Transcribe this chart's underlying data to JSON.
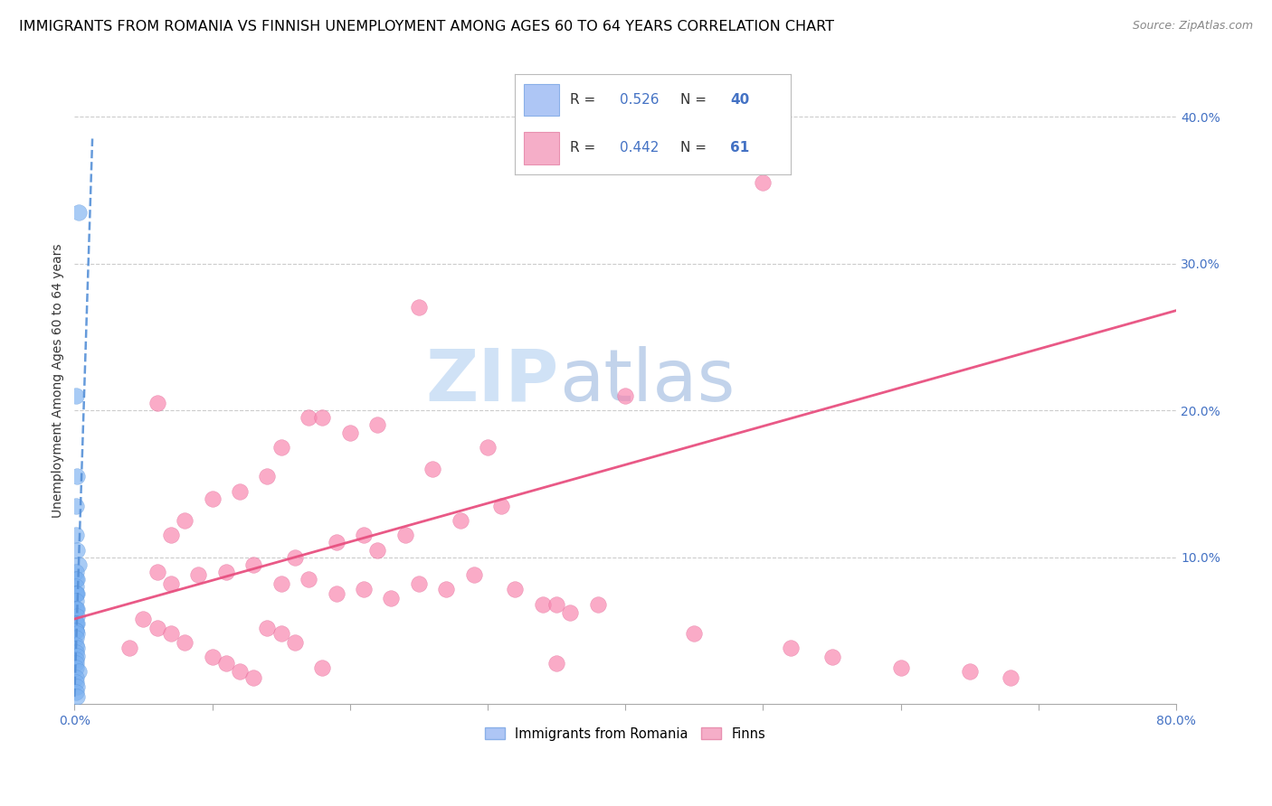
{
  "title": "IMMIGRANTS FROM ROMANIA VS FINNISH UNEMPLOYMENT AMONG AGES 60 TO 64 YEARS CORRELATION CHART",
  "source": "Source: ZipAtlas.com",
  "ylabel": "Unemployment Among Ages 60 to 64 years",
  "ylabel_right_ticks": [
    "40.0%",
    "30.0%",
    "20.0%",
    "10.0%"
  ],
  "ylabel_right_vals": [
    0.4,
    0.3,
    0.2,
    0.1
  ],
  "legend_entries": [
    {
      "label": "Immigrants from Romania",
      "R": "0.526",
      "N": "40",
      "color": "#aec6f5",
      "edgecolor": "#8ab0e8"
    },
    {
      "label": "Finns",
      "R": "0.442",
      "N": "61",
      "color": "#f5aec8",
      "edgecolor": "#e890b0"
    }
  ],
  "blue_scatter_x": [
    0.003,
    0.001,
    0.002,
    0.001,
    0.001,
    0.002,
    0.003,
    0.001,
    0.001,
    0.002,
    0.001,
    0.001,
    0.001,
    0.001,
    0.002,
    0.001,
    0.001,
    0.001,
    0.002,
    0.002,
    0.001,
    0.001,
    0.002,
    0.001,
    0.001,
    0.002,
    0.001,
    0.001,
    0.002,
    0.001,
    0.002,
    0.001,
    0.001,
    0.001,
    0.003,
    0.001,
    0.001,
    0.002,
    0.001,
    0.002
  ],
  "blue_scatter_y": [
    0.335,
    0.21,
    0.155,
    0.135,
    0.115,
    0.105,
    0.095,
    0.09,
    0.085,
    0.085,
    0.08,
    0.075,
    0.075,
    0.075,
    0.075,
    0.07,
    0.065,
    0.065,
    0.065,
    0.06,
    0.055,
    0.055,
    0.055,
    0.05,
    0.05,
    0.048,
    0.045,
    0.04,
    0.038,
    0.035,
    0.033,
    0.03,
    0.028,
    0.025,
    0.022,
    0.018,
    0.015,
    0.012,
    0.008,
    0.005
  ],
  "pink_scatter_x": [
    0.5,
    0.25,
    0.4,
    0.06,
    0.22,
    0.3,
    0.17,
    0.18,
    0.2,
    0.15,
    0.1,
    0.12,
    0.14,
    0.08,
    0.07,
    0.26,
    0.16,
    0.19,
    0.21,
    0.22,
    0.24,
    0.28,
    0.31,
    0.06,
    0.07,
    0.09,
    0.11,
    0.13,
    0.15,
    0.17,
    0.19,
    0.21,
    0.23,
    0.25,
    0.27,
    0.29,
    0.32,
    0.34,
    0.36,
    0.38,
    0.05,
    0.06,
    0.07,
    0.08,
    0.04,
    0.1,
    0.11,
    0.12,
    0.13,
    0.35,
    0.14,
    0.15,
    0.16,
    0.35,
    0.18,
    0.45,
    0.52,
    0.55,
    0.6,
    0.65,
    0.68
  ],
  "pink_scatter_y": [
    0.355,
    0.27,
    0.21,
    0.205,
    0.19,
    0.175,
    0.195,
    0.195,
    0.185,
    0.175,
    0.14,
    0.145,
    0.155,
    0.125,
    0.115,
    0.16,
    0.1,
    0.11,
    0.115,
    0.105,
    0.115,
    0.125,
    0.135,
    0.09,
    0.082,
    0.088,
    0.09,
    0.095,
    0.082,
    0.085,
    0.075,
    0.078,
    0.072,
    0.082,
    0.078,
    0.088,
    0.078,
    0.068,
    0.062,
    0.068,
    0.058,
    0.052,
    0.048,
    0.042,
    0.038,
    0.032,
    0.028,
    0.022,
    0.018,
    0.068,
    0.052,
    0.048,
    0.042,
    0.028,
    0.025,
    0.048,
    0.038,
    0.032,
    0.025,
    0.022,
    0.018
  ],
  "blue_line_x": [
    0.0,
    0.013
  ],
  "blue_line_y": [
    0.005,
    0.385
  ],
  "pink_line_x": [
    0.0,
    0.8
  ],
  "pink_line_y": [
    0.058,
    0.268
  ],
  "xlim": [
    0.0,
    0.8
  ],
  "ylim": [
    0.0,
    0.44
  ],
  "blue_scatter_color": "#7ab0f0",
  "blue_scatter_edge": "#5590d8",
  "pink_scatter_color": "#f888b0",
  "pink_scatter_edge": "#e06090",
  "blue_line_color": "#5590d8",
  "pink_line_color": "#e85080",
  "title_fontsize": 11.5,
  "axis_label_fontsize": 10,
  "tick_fontsize": 10,
  "watermark_zip_color": "#c8ddf5",
  "watermark_atlas_color": "#b8cce8"
}
